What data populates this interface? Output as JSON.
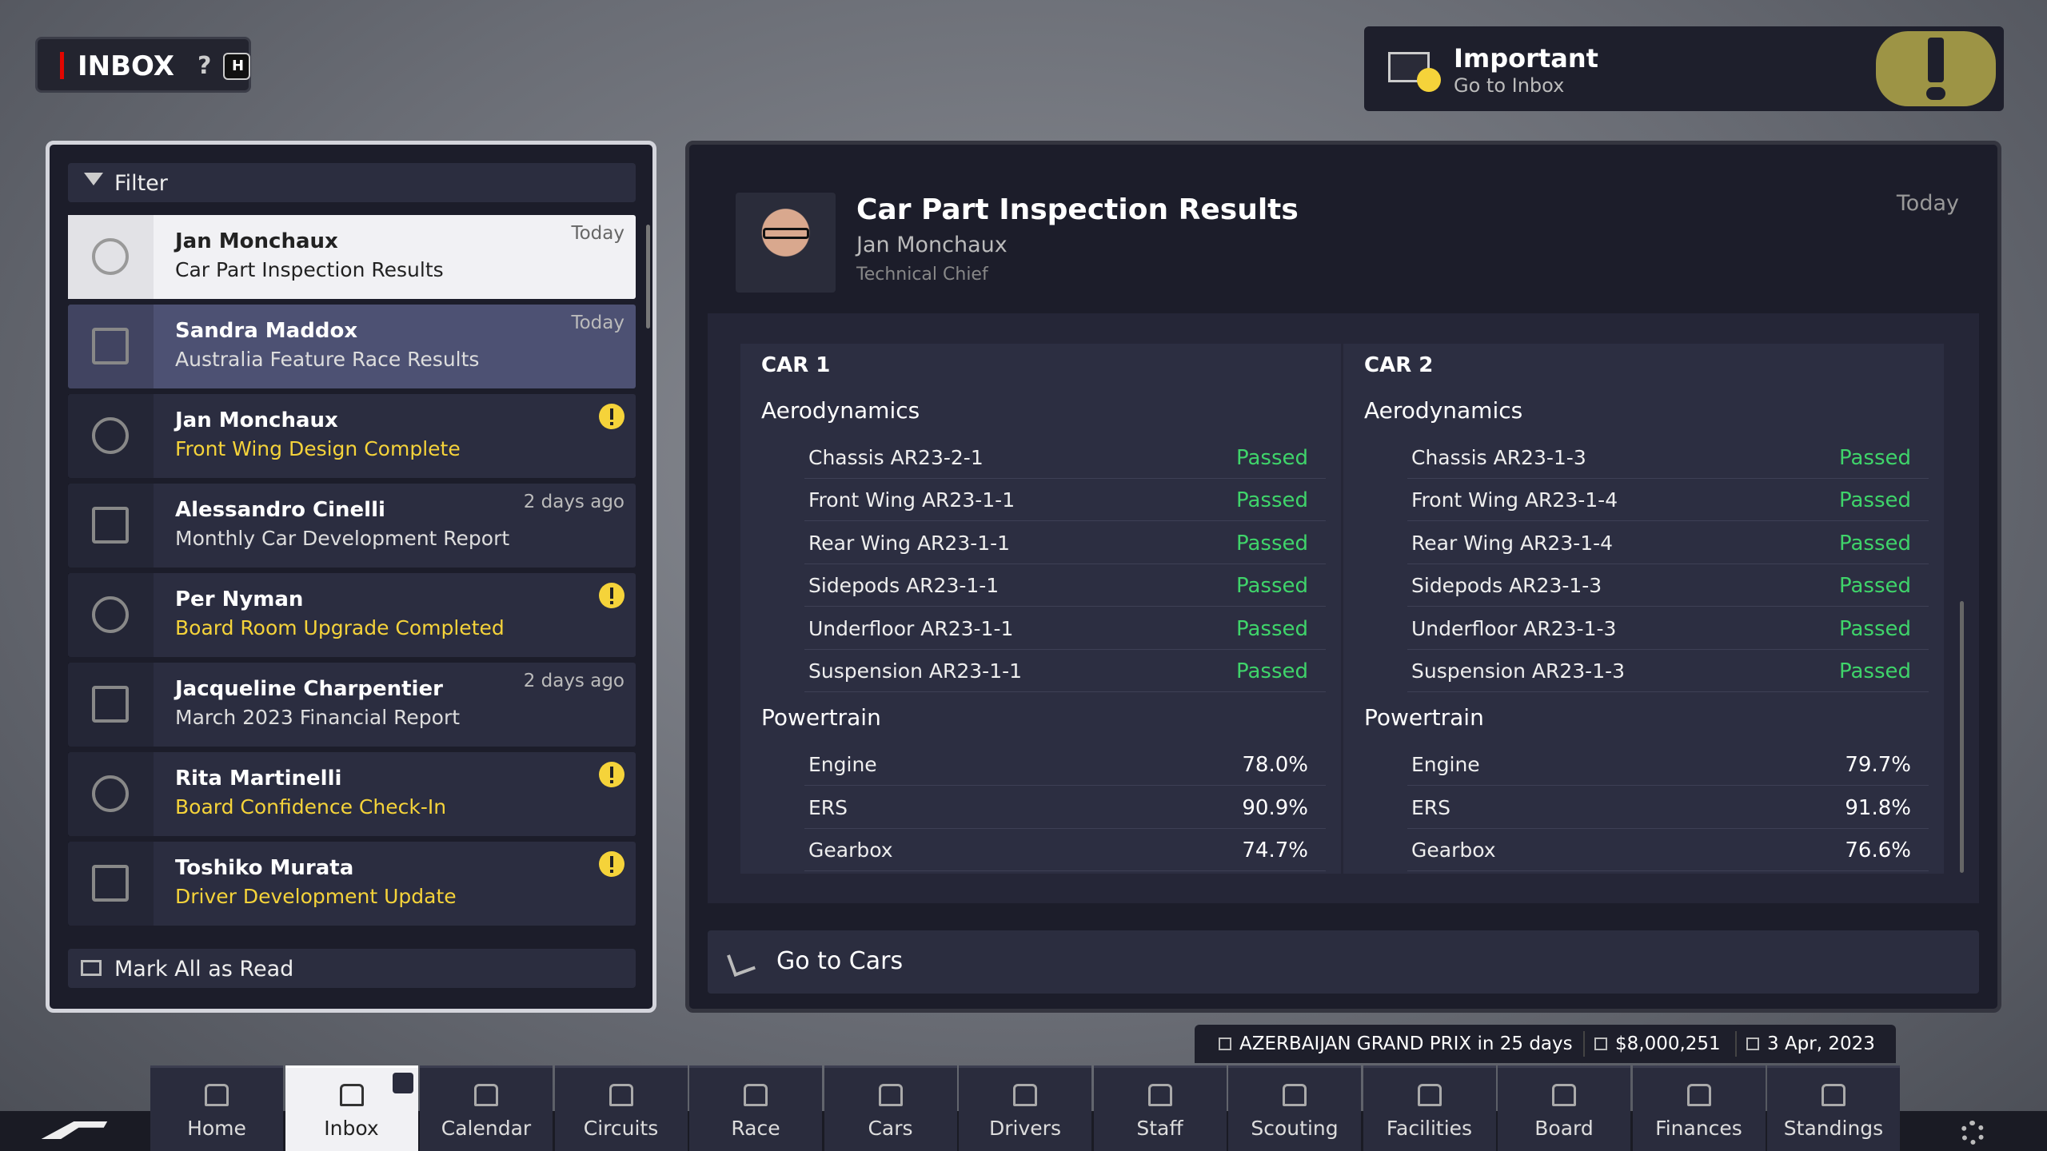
{
  "header": {
    "title": "INBOX",
    "help": "?",
    "hotkey": "H"
  },
  "notification": {
    "title": "Important",
    "subtitle": "Go to Inbox"
  },
  "filter": "Filter",
  "messages": [
    {
      "sender": "Jan Monchaux",
      "subject": "Car Part Inspection Results",
      "date": "Today",
      "important": false
    },
    {
      "sender": "Sandra Maddox",
      "subject": "Australia Feature Race Results",
      "date": "Today",
      "important": false
    },
    {
      "sender": "Jan Monchaux",
      "subject": "Front Wing Design Complete",
      "important": true
    },
    {
      "sender": "Alessandro Cinelli",
      "subject": "Monthly Car Development Report",
      "date": "2 days ago",
      "important": false
    },
    {
      "sender": "Per Nyman",
      "subject": "Board Room Upgrade Completed",
      "important": true
    },
    {
      "sender": "Jacqueline Charpentier",
      "subject": "March 2023 Financial Report",
      "date": "2 days ago",
      "important": false
    },
    {
      "sender": "Rita Martinelli",
      "subject": "Board Confidence Check-In",
      "important": true
    },
    {
      "sender": "Toshiko Murata",
      "subject": "Driver Development Update",
      "important": true
    }
  ],
  "mark_all": "Mark All as Read",
  "detail": {
    "title": "Car Part Inspection Results",
    "sender": "Jan Monchaux",
    "role": "Technical Chief",
    "date": "Today",
    "cars": [
      {
        "name": "CAR 1",
        "groups": [
          {
            "name": "Aerodynamics",
            "items": [
              {
                "part": "Chassis AR23-2-1",
                "result": "Passed"
              },
              {
                "part": "Front Wing AR23-1-1",
                "result": "Passed"
              },
              {
                "part": "Rear Wing AR23-1-1",
                "result": "Passed"
              },
              {
                "part": "Sidepods AR23-1-1",
                "result": "Passed"
              },
              {
                "part": "Underfloor AR23-1-1",
                "result": "Passed"
              },
              {
                "part": "Suspension AR23-1-1",
                "result": "Passed"
              }
            ]
          },
          {
            "name": "Powertrain",
            "items": [
              {
                "part": "Engine",
                "result": "78.0%"
              },
              {
                "part": "ERS",
                "result": "90.9%"
              },
              {
                "part": "Gearbox",
                "result": "74.7%"
              }
            ]
          }
        ]
      },
      {
        "name": "CAR 2",
        "groups": [
          {
            "name": "Aerodynamics",
            "items": [
              {
                "part": "Chassis AR23-1-3",
                "result": "Passed"
              },
              {
                "part": "Front Wing AR23-1-4",
                "result": "Passed"
              },
              {
                "part": "Rear Wing AR23-1-4",
                "result": "Passed"
              },
              {
                "part": "Sidepods AR23-1-3",
                "result": "Passed"
              },
              {
                "part": "Underfloor AR23-1-3",
                "result": "Passed"
              },
              {
                "part": "Suspension AR23-1-3",
                "result": "Passed"
              }
            ]
          },
          {
            "name": "Powertrain",
            "items": [
              {
                "part": "Engine",
                "result": "79.7%"
              },
              {
                "part": "ERS",
                "result": "91.8%"
              },
              {
                "part": "Gearbox",
                "result": "76.6%"
              }
            ]
          }
        ]
      }
    ],
    "action": "Go to Cars"
  },
  "status": {
    "event": "AZERBAIJAN GRAND PRIX in 25 days",
    "money": "$8,000,251",
    "date": "3 Apr, 2023"
  },
  "nav": [
    {
      "label": "Home"
    },
    {
      "label": "Inbox",
      "active": true
    },
    {
      "label": "Calendar"
    },
    {
      "label": "Circuits"
    },
    {
      "label": "Race"
    },
    {
      "label": "Cars"
    },
    {
      "label": "Drivers"
    },
    {
      "label": "Staff"
    },
    {
      "label": "Scouting"
    },
    {
      "label": "Facilities"
    },
    {
      "label": "Board"
    },
    {
      "label": "Finances"
    },
    {
      "label": "Standings"
    }
  ]
}
